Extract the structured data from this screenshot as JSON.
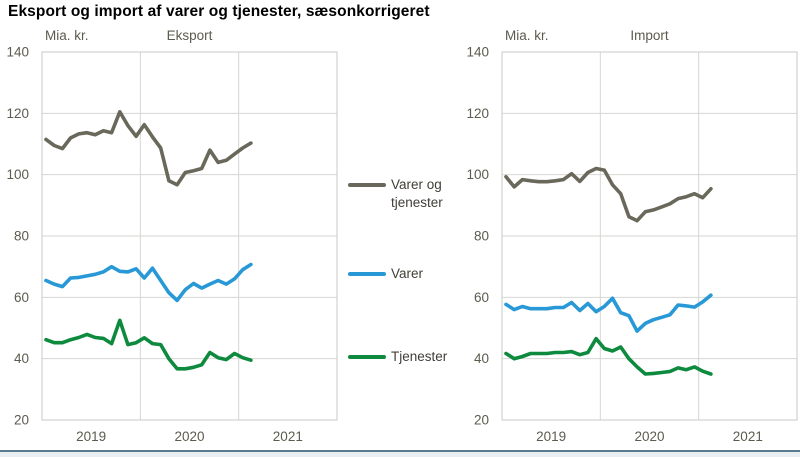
{
  "page": {
    "title": "Eksport og import af varer og tjenester, sæsonkorrigeret"
  },
  "colors": {
    "varer_og_tjenester": "#6A685A",
    "varer": "#2899D6",
    "tjenester": "#0E8A3E",
    "grid": "#D6D6D2",
    "frame": "#C9C9C5",
    "axis_text": "#5C5B4E",
    "legend_text": "#403E36",
    "footer_line": "#5A7A90",
    "footer_fill": "#E8EEF2"
  },
  "legend": {
    "position": "center-between-charts",
    "items": [
      {
        "label": "Varer og tjenester",
        "color_key": "varer_og_tjenester"
      },
      {
        "label": "Varer",
        "color_key": "varer"
      },
      {
        "label": "Tjenester",
        "color_key": "tjenester"
      }
    ]
  },
  "chart_data": [
    {
      "type": "line",
      "title": "Eksport",
      "ylabel": "Mia. kr.",
      "ylim": [
        20,
        140
      ],
      "yticks": [
        140,
        120,
        100,
        80,
        60,
        40,
        20
      ],
      "x_year_labels": [
        "2019",
        "2020",
        "2021"
      ],
      "x_start": "2019-01",
      "x_end": "2021-02",
      "frequency": "monthly",
      "grid": true,
      "series": [
        {
          "name": "Varer og tjenester",
          "color_key": "varer_og_tjenester",
          "values": [
            111.5,
            109.5,
            108.5,
            112,
            113.3,
            113.7,
            113,
            114.3,
            113.7,
            120.5,
            116,
            112.5,
            116.3,
            112.3,
            108.7,
            98,
            96.7,
            100.7,
            101.3,
            102,
            108,
            104,
            104.7,
            106.7,
            108.7,
            110.3
          ]
        },
        {
          "name": "Varer",
          "color_key": "varer",
          "values": [
            65.5,
            64.3,
            63.5,
            66.3,
            66.5,
            67,
            67.5,
            68.3,
            70,
            68.5,
            68.3,
            69.3,
            66.3,
            69.5,
            65.5,
            61.5,
            59,
            62.5,
            64.5,
            63,
            64.3,
            65.5,
            64.3,
            66,
            69,
            70.7
          ]
        },
        {
          "name": "Tjenester",
          "color_key": "tjenester",
          "values": [
            46.2,
            45.2,
            45.2,
            46.2,
            46.9,
            47.9,
            46.9,
            46.6,
            44.9,
            52.5,
            44.6,
            45.2,
            46.8,
            44.9,
            44.6,
            40,
            36.7,
            36.7,
            37.2,
            38,
            42,
            40.3,
            39.7,
            41.7,
            40.3,
            39.5
          ]
        }
      ]
    },
    {
      "type": "line",
      "title": "Import",
      "ylabel": "Mia. kr.",
      "ylim": [
        20,
        140
      ],
      "yticks": [
        140,
        120,
        100,
        80,
        60,
        40,
        20
      ],
      "x_year_labels": [
        "2019",
        "2020",
        "2021"
      ],
      "x_start": "2019-01",
      "x_end": "2021-02",
      "frequency": "monthly",
      "grid": true,
      "series": [
        {
          "name": "Varer og tjenester",
          "color_key": "varer_og_tjenester",
          "values": [
            99.3,
            96,
            98.4,
            98,
            97.7,
            97.7,
            98,
            98.4,
            100.3,
            97.8,
            100.7,
            102,
            101.5,
            96.7,
            93.8,
            86.3,
            85,
            87.9,
            88.5,
            89.5,
            90.5,
            92.2,
            92.8,
            93.8,
            92.5,
            95.4
          ]
        },
        {
          "name": "Varer",
          "color_key": "varer",
          "values": [
            57.7,
            56,
            57,
            56.3,
            56.3,
            56.3,
            56.7,
            56.7,
            58.3,
            55.7,
            58,
            55.3,
            57,
            59.7,
            55,
            54,
            49,
            51.5,
            52.7,
            53.5,
            54.3,
            57.5,
            57.2,
            56.8,
            58.5,
            60.7
          ]
        },
        {
          "name": "Tjenester",
          "color_key": "tjenester",
          "values": [
            41.7,
            40,
            40.7,
            41.7,
            41.7,
            41.7,
            42,
            42,
            42.3,
            41.3,
            42,
            46.5,
            43.3,
            42.5,
            43.8,
            40,
            37.3,
            35,
            35.2,
            35.5,
            35.8,
            37,
            36.4,
            37.3,
            35.9,
            35
          ]
        }
      ]
    }
  ]
}
